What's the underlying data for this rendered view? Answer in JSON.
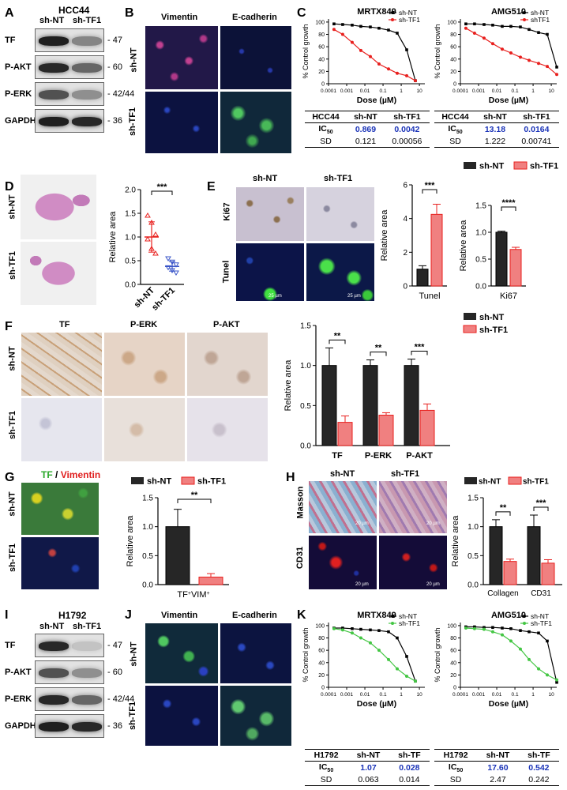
{
  "panels": {
    "A": {
      "label": "A",
      "cell": "HCC44",
      "cols": [
        "sh-NT",
        "sh-TF1"
      ],
      "rows": [
        {
          "name": "TF",
          "kda": "47"
        },
        {
          "name": "P-AKT",
          "kda": "60"
        },
        {
          "name": "P-ERK",
          "kda": "42/44"
        },
        {
          "name": "GAPDH",
          "kda": "36"
        }
      ]
    },
    "B": {
      "label": "B",
      "cols": [
        "Vimentin",
        "E-cadherin"
      ],
      "rows": [
        "sh-NT",
        "sh-TF1"
      ]
    },
    "C": {
      "label": "C"
    },
    "D": {
      "label": "D",
      "rows": [
        "sh-NT",
        "sh-TF1"
      ],
      "sig": "***"
    },
    "E": {
      "label": "E",
      "cols": [
        "sh-NT",
        "sh-TF1"
      ],
      "rows": [
        "Ki67",
        "Tunel"
      ],
      "scale": "25 µm",
      "sig1": "***",
      "sig2": "****"
    },
    "F": {
      "label": "F",
      "cols": [
        "TF",
        "P-ERK",
        "P-AKT"
      ],
      "rows": [
        "sh-NT",
        "sh-TF1"
      ],
      "sigs": [
        "**",
        "**",
        "***"
      ]
    },
    "G": {
      "label": "G",
      "title_tf": "TF",
      "title_sep": " / ",
      "title_vim": "Vimentin",
      "rows": [
        "sh-NT",
        "sh-TF1"
      ],
      "sig": "**"
    },
    "H": {
      "label": "H",
      "cols": [
        "sh-NT",
        "sh-TF1"
      ],
      "rows": [
        "Masson",
        "CD31"
      ],
      "scale": "20 µm",
      "sigs": [
        "**",
        "***"
      ]
    },
    "I": {
      "label": "I",
      "cell": "H1792",
      "cols": [
        "sh-NT",
        "sh-TF1"
      ],
      "rows": [
        {
          "name": "TF",
          "kda": "47"
        },
        {
          "name": "P-AKT",
          "kda": "60"
        },
        {
          "name": "P-ERK",
          "kda": "42/44"
        },
        {
          "name": "GAPDH",
          "kda": "36"
        }
      ]
    },
    "J": {
      "label": "J",
      "cols": [
        "Vimentin",
        "E-cadherin"
      ],
      "rows": [
        "sh-NT",
        "sh-TF1"
      ]
    },
    "K": {
      "label": "K"
    }
  },
  "legends": {
    "shNT": "sh-NT",
    "shTF1": "sh-TF1",
    "shTF1_alt": "shTF1"
  },
  "tables": {
    "C1": {
      "head": [
        "HCC44",
        "sh-NT",
        "sh-TF1"
      ],
      "ic": [
        "IC",
        "0.869",
        "0.0042"
      ],
      "sd": [
        "SD",
        "0.121",
        "0.00056"
      ]
    },
    "C2": {
      "head": [
        "HCC44",
        "sh-NT",
        "sh-TF1"
      ],
      "ic": [
        "IC",
        "13.18",
        "0.0164"
      ],
      "sd": [
        "SD",
        "1.222",
        "0.00741"
      ]
    },
    "K1": {
      "head": [
        "H1792",
        "sh-NT",
        "sh-TF"
      ],
      "ic": [
        "IC",
        "1.07",
        "0.028"
      ],
      "sd": [
        "SD",
        "0.063",
        "0.014"
      ]
    },
    "K2": {
      "head": [
        "H1792",
        "sh-NT",
        "sh-TF"
      ],
      "ic": [
        "IC",
        "17.60",
        "0.542"
      ],
      "sd": [
        "SD",
        "2.47",
        "0.242"
      ]
    }
  },
  "chart_data": [
    {
      "id": "C-MRTX849",
      "type": "scatter",
      "title": "MRTX849",
      "xlabel": "Dose (µM)",
      "ylabel": "% Control growth",
      "xscale": "log",
      "ylim": [
        0,
        100
      ],
      "xticks": [
        "0.0001",
        "0.001",
        "0.01",
        "0.1",
        "1",
        "10"
      ],
      "yticks": [
        "0",
        "20",
        "40",
        "60",
        "80",
        "100"
      ],
      "series": [
        {
          "name": "sh-NT",
          "color": "#000000",
          "x": [
            0.0002,
            0.0006,
            0.002,
            0.006,
            0.02,
            0.06,
            0.2,
            0.6,
            2,
            6
          ],
          "y": [
            97,
            96,
            95,
            93,
            92,
            90,
            87,
            82,
            55,
            5
          ]
        },
        {
          "name": "sh-TF1",
          "color": "#e8201e",
          "x": [
            0.0002,
            0.0006,
            0.002,
            0.006,
            0.02,
            0.06,
            0.2,
            0.6,
            2,
            6
          ],
          "y": [
            88,
            80,
            67,
            54,
            44,
            32,
            24,
            17,
            13,
            5
          ]
        }
      ]
    },
    {
      "id": "C-AMG510",
      "type": "scatter",
      "title": "AMG510",
      "xlabel": "Dose (µM)",
      "ylabel": "% Control growth",
      "xscale": "log",
      "ylim": [
        0,
        100
      ],
      "xticks": [
        "0.0001",
        "0.001",
        "0.01",
        "0.1",
        "1",
        "10"
      ],
      "yticks": [
        "0",
        "20",
        "40",
        "60",
        "80",
        "100"
      ],
      "series": [
        {
          "name": "sh-NT",
          "color": "#000000",
          "x": [
            0.0002,
            0.0006,
            0.002,
            0.006,
            0.02,
            0.06,
            0.2,
            0.6,
            2,
            6,
            20
          ],
          "y": [
            97,
            97,
            96,
            95,
            93,
            93,
            92,
            88,
            83,
            80,
            27
          ]
        },
        {
          "name": "shTF1",
          "color": "#e8201e",
          "x": [
            0.0002,
            0.0006,
            0.002,
            0.006,
            0.02,
            0.06,
            0.2,
            0.6,
            2,
            6,
            20
          ],
          "y": [
            90,
            82,
            74,
            65,
            56,
            50,
            43,
            38,
            33,
            28,
            15
          ]
        }
      ]
    },
    {
      "id": "D",
      "type": "scatter",
      "ylabel": "Relative area",
      "ylim": [
        0,
        2.0
      ],
      "yticks": [
        "0.0",
        "0.5",
        "1.0",
        "1.5",
        "2.0"
      ],
      "categories": [
        "sh-NT",
        "sh-TF1"
      ],
      "series": [
        {
          "name": "sh-NT",
          "color": "#e8201e",
          "values": [
            1.45,
            1.3,
            1.05,
            0.95,
            0.75,
            0.65
          ],
          "mean": 1.0,
          "sd": 0.32
        },
        {
          "name": "sh-TF1",
          "color": "#3a55c8",
          "values": [
            0.55,
            0.48,
            0.42,
            0.36,
            0.3,
            0.25
          ],
          "mean": 0.38,
          "sd": 0.1
        }
      ]
    },
    {
      "id": "E-Tunel",
      "type": "bar",
      "xlabel": "Tunel",
      "ylabel": "Relative area",
      "ylim": [
        0,
        6
      ],
      "yticks": [
        "0",
        "2",
        "4",
        "6"
      ],
      "series": [
        {
          "name": "sh-NT",
          "values": [
            1.0
          ],
          "err": [
            0.2
          ]
        },
        {
          "name": "sh-TF1",
          "values": [
            4.25
          ],
          "err": [
            0.6
          ]
        }
      ]
    },
    {
      "id": "E-Ki67",
      "type": "bar",
      "xlabel": "Ki67",
      "ylabel": "Relative area",
      "ylim": [
        0,
        1.5
      ],
      "yticks": [
        "0.0",
        "0.5",
        "1.0",
        "1.5"
      ],
      "series": [
        {
          "name": "sh-NT",
          "values": [
            1.0
          ],
          "err": [
            0.02
          ]
        },
        {
          "name": "sh-TF1",
          "values": [
            0.68
          ],
          "err": [
            0.04
          ]
        }
      ]
    },
    {
      "id": "F",
      "type": "bar",
      "ylabel": "Relative area",
      "ylim": [
        0,
        1.5
      ],
      "yticks": [
        "0.0",
        "0.5",
        "1.0",
        "1.5"
      ],
      "categories": [
        "TF",
        "P-ERK",
        "P-AKT"
      ],
      "series": [
        {
          "name": "sh-NT",
          "values": [
            1.0,
            1.0,
            1.0
          ],
          "err": [
            0.22,
            0.07,
            0.08
          ]
        },
        {
          "name": "sh-TF1",
          "values": [
            0.29,
            0.38,
            0.44
          ],
          "err": [
            0.08,
            0.03,
            0.08
          ]
        }
      ]
    },
    {
      "id": "G",
      "type": "bar",
      "xlabel": "TF",
      "xlabel_sup1": "+",
      "xlabel_mid": "VIM",
      "xlabel_sup2": "+",
      "ylabel": "Relative area",
      "ylim": [
        0,
        1.5
      ],
      "yticks": [
        "0.0",
        "0.5",
        "1.0",
        "1.5"
      ],
      "series": [
        {
          "name": "sh-NT",
          "values": [
            1.0
          ],
          "err": [
            0.3
          ]
        },
        {
          "name": "sh-TF1",
          "values": [
            0.13
          ],
          "err": [
            0.06
          ]
        }
      ]
    },
    {
      "id": "H",
      "type": "bar",
      "ylabel": "Relative area",
      "ylim": [
        0,
        1.5
      ],
      "yticks": [
        "0.0",
        "0.5",
        "1.0",
        "1.5"
      ],
      "categories": [
        "Collagen",
        "CD31"
      ],
      "series": [
        {
          "name": "sh-NT",
          "values": [
            1.0,
            1.0
          ],
          "err": [
            0.12,
            0.2
          ]
        },
        {
          "name": "sh-TF1",
          "values": [
            0.4,
            0.37
          ],
          "err": [
            0.04,
            0.06
          ]
        }
      ]
    },
    {
      "id": "K-MRTX849",
      "type": "scatter",
      "title": "MRTX849",
      "xlabel": "Dose (µM)",
      "ylabel": "% Control growth",
      "xscale": "log",
      "ylim": [
        0,
        100
      ],
      "xticks": [
        "0.0001",
        "0.001",
        "0.01",
        "0.1",
        "1",
        "10"
      ],
      "yticks": [
        "0",
        "20",
        "40",
        "60",
        "80",
        "100"
      ],
      "series": [
        {
          "name": "sh-NT",
          "color": "#000000",
          "x": [
            0.0002,
            0.0006,
            0.002,
            0.006,
            0.02,
            0.06,
            0.2,
            0.6,
            2,
            6
          ],
          "y": [
            96,
            96,
            95,
            94,
            93,
            92,
            90,
            80,
            50,
            10
          ]
        },
        {
          "name": "sh-TF1",
          "color": "#44c644",
          "x": [
            0.0002,
            0.0006,
            0.002,
            0.006,
            0.02,
            0.06,
            0.2,
            0.6,
            2,
            6
          ],
          "y": [
            95,
            93,
            88,
            80,
            72,
            60,
            45,
            30,
            18,
            10
          ]
        }
      ]
    },
    {
      "id": "K-AMG510",
      "type": "scatter",
      "title": "AMG510",
      "xlabel": "Dose (µM)",
      "ylabel": "% Control growth",
      "xscale": "log",
      "ylim": [
        0,
        100
      ],
      "xticks": [
        "0.0001",
        "0.001",
        "0.01",
        "0.1",
        "1",
        "10"
      ],
      "yticks": [
        "0",
        "20",
        "40",
        "60",
        "80",
        "100"
      ],
      "series": [
        {
          "name": "sh-NT",
          "color": "#000000",
          "x": [
            0.0002,
            0.0006,
            0.002,
            0.006,
            0.02,
            0.06,
            0.2,
            0.6,
            2,
            6,
            20
          ],
          "y": [
            98,
            98,
            97,
            97,
            96,
            95,
            92,
            90,
            88,
            75,
            8
          ]
        },
        {
          "name": "sh-TF1",
          "color": "#44c644",
          "x": [
            0.0002,
            0.0006,
            0.002,
            0.006,
            0.02,
            0.06,
            0.2,
            0.6,
            2,
            6,
            20
          ],
          "y": [
            96,
            95,
            94,
            90,
            85,
            75,
            62,
            45,
            30,
            20,
            12
          ]
        }
      ]
    }
  ]
}
